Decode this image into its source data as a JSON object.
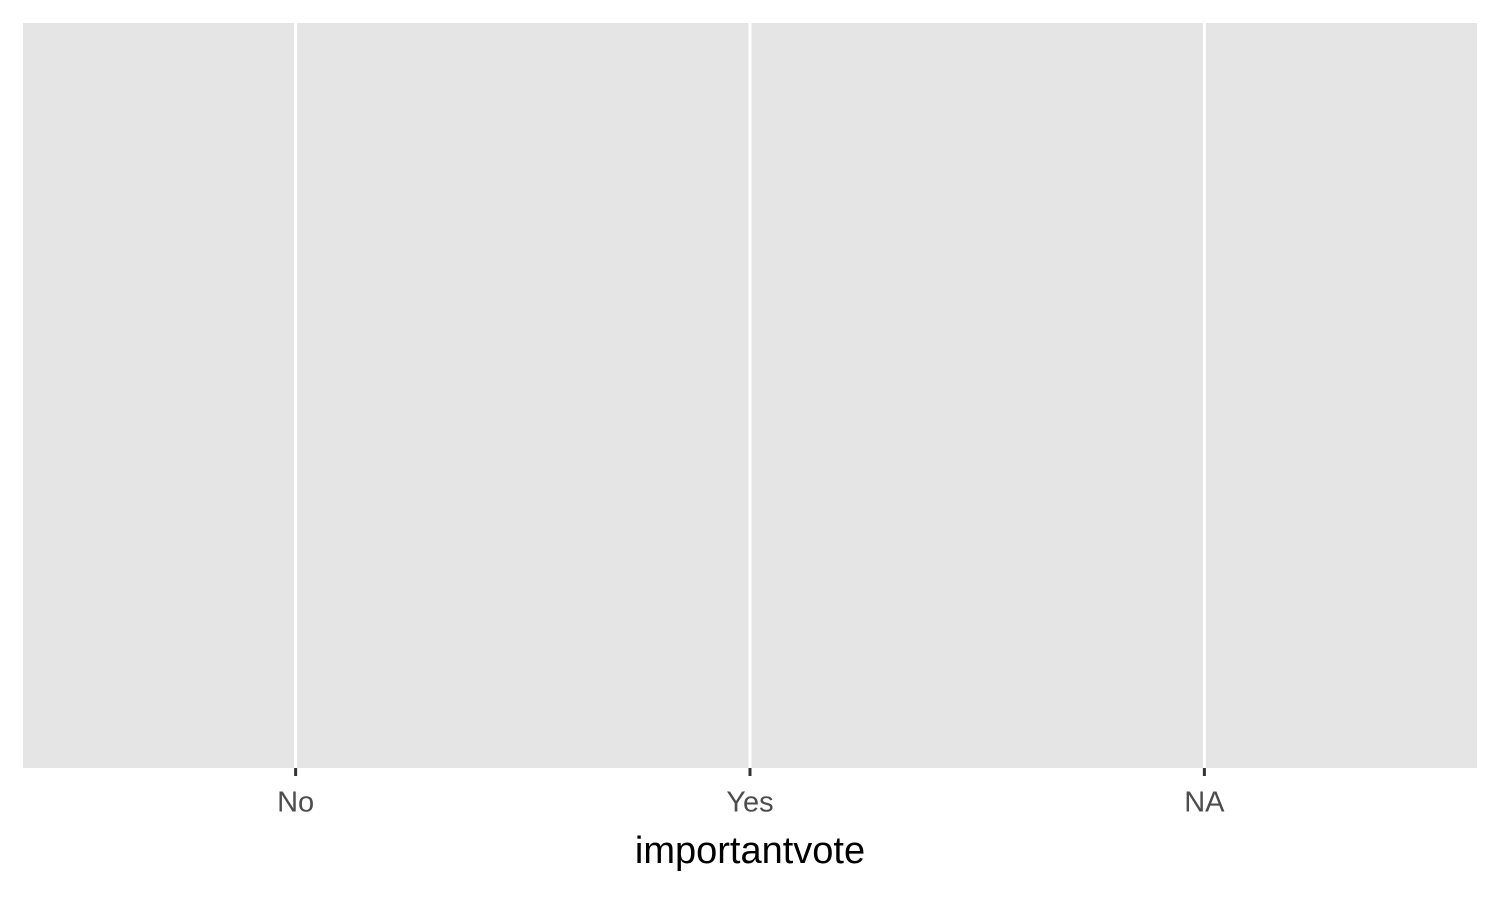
{
  "chart_data": {
    "type": "bar",
    "categories": [
      "No",
      "Yes",
      "NA"
    ],
    "xlabel": "importantvote",
    "grid": true
  }
}
